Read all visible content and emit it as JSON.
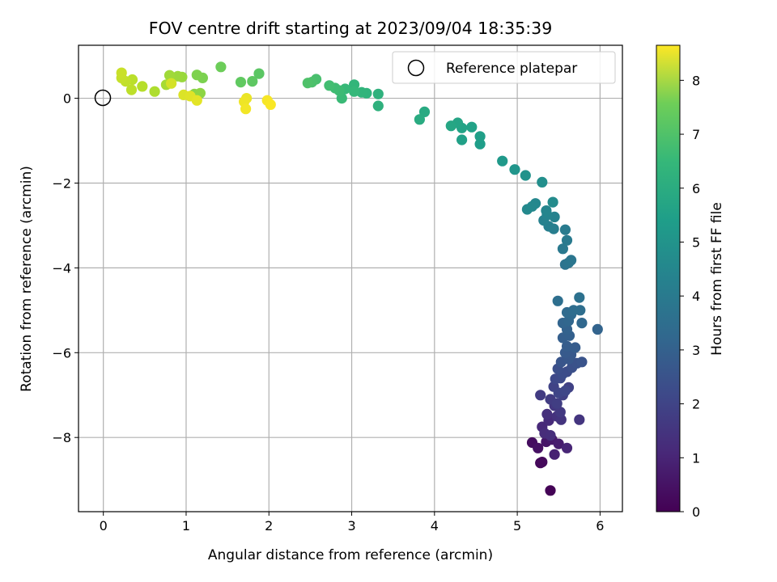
{
  "chart_data": {
    "type": "scatter",
    "title": "FOV centre drift starting at 2023/09/04 18:35:39",
    "xlabel": "Angular distance from reference (arcmin)",
    "ylabel": "Rotation from reference (arcmin)",
    "xlim": [
      -0.3,
      6.27
    ],
    "ylim": [
      -9.75,
      1.25
    ],
    "xticks": [
      0,
      1,
      2,
      3,
      4,
      5,
      6
    ],
    "yticks": [
      0,
      -2,
      -4,
      -6,
      -8
    ],
    "grid": true,
    "legend": {
      "placement": "top-right",
      "entries": [
        "Reference platepar"
      ]
    },
    "colorbar": {
      "label": "Hours from first FF file",
      "min": 0,
      "max": 8.65,
      "ticks": [
        0,
        1,
        2,
        3,
        4,
        5,
        6,
        7,
        8
      ],
      "colormap": "viridis"
    },
    "reference_point": {
      "x": 0,
      "y": 0
    },
    "series": [
      {
        "columns": [
          "x",
          "y",
          "hours"
        ],
        "points": [
          [
            5.4,
            -9.25,
            0.05
          ],
          [
            5.28,
            -8.6,
            0.15
          ],
          [
            5.3,
            -8.58,
            0.2
          ],
          [
            5.18,
            -8.12,
            0.3
          ],
          [
            5.25,
            -8.25,
            0.4
          ],
          [
            5.35,
            -8.1,
            0.5
          ],
          [
            5.42,
            -8.05,
            0.6
          ],
          [
            5.5,
            -8.15,
            0.7
          ],
          [
            5.45,
            -8.4,
            0.8
          ],
          [
            5.6,
            -8.25,
            0.9
          ],
          [
            5.3,
            -7.75,
            1.0
          ],
          [
            5.38,
            -7.6,
            1.05
          ],
          [
            5.33,
            -7.9,
            1.1
          ],
          [
            5.4,
            -7.95,
            1.15
          ],
          [
            5.36,
            -7.45,
            1.2
          ],
          [
            5.48,
            -7.5,
            1.25
          ],
          [
            5.53,
            -7.58,
            1.3
          ],
          [
            5.75,
            -7.58,
            1.35
          ],
          [
            5.45,
            -7.25,
            1.4
          ],
          [
            5.52,
            -7.4,
            1.45
          ],
          [
            5.28,
            -7.0,
            1.5
          ],
          [
            5.4,
            -7.1,
            1.55
          ],
          [
            5.48,
            -7.2,
            1.6
          ],
          [
            5.55,
            -7.0,
            1.65
          ],
          [
            5.62,
            -6.82,
            1.7
          ],
          [
            5.44,
            -6.8,
            1.75
          ],
          [
            5.5,
            -6.95,
            1.8
          ],
          [
            5.58,
            -6.9,
            1.85
          ],
          [
            5.46,
            -6.62,
            1.9
          ],
          [
            5.52,
            -6.6,
            1.95
          ],
          [
            5.6,
            -6.45,
            2.0
          ],
          [
            5.55,
            -6.5,
            2.05
          ],
          [
            5.49,
            -6.38,
            2.1
          ],
          [
            5.66,
            -6.35,
            2.15
          ],
          [
            5.72,
            -6.25,
            2.2
          ],
          [
            5.78,
            -6.22,
            2.25
          ],
          [
            5.53,
            -6.22,
            2.3
          ],
          [
            5.62,
            -6.15,
            2.35
          ],
          [
            5.65,
            -6.05,
            2.4
          ],
          [
            5.58,
            -6.0,
            2.45
          ],
          [
            5.7,
            -5.88,
            2.5
          ],
          [
            5.6,
            -5.85,
            2.55
          ],
          [
            5.55,
            -5.65,
            2.6
          ],
          [
            5.63,
            -5.6,
            2.65
          ],
          [
            5.6,
            -5.45,
            2.7
          ],
          [
            5.97,
            -5.45,
            2.75
          ],
          [
            5.55,
            -5.3,
            2.8
          ],
          [
            5.62,
            -5.25,
            2.85
          ],
          [
            5.78,
            -5.3,
            2.9
          ],
          [
            5.65,
            -5.1,
            2.95
          ],
          [
            5.6,
            -5.05,
            3.0
          ],
          [
            5.68,
            -5.0,
            3.05
          ],
          [
            5.76,
            -5.0,
            3.1
          ],
          [
            5.49,
            -4.78,
            3.15
          ],
          [
            5.75,
            -4.7,
            3.2
          ],
          [
            5.58,
            -3.92,
            3.3
          ],
          [
            5.62,
            -3.88,
            3.35
          ],
          [
            5.65,
            -3.82,
            3.4
          ],
          [
            5.55,
            -3.55,
            3.5
          ],
          [
            5.6,
            -3.35,
            3.55
          ],
          [
            5.58,
            -3.1,
            3.6
          ],
          [
            5.44,
            -3.08,
            3.7
          ],
          [
            5.38,
            -3.02,
            3.75
          ],
          [
            5.32,
            -2.88,
            3.8
          ],
          [
            5.45,
            -2.8,
            3.85
          ],
          [
            5.36,
            -2.75,
            3.9
          ],
          [
            5.35,
            -2.65,
            3.95
          ],
          [
            5.22,
            -2.48,
            4.0
          ],
          [
            5.18,
            -2.55,
            4.05
          ],
          [
            5.12,
            -2.62,
            4.1
          ],
          [
            5.43,
            -2.45,
            4.15
          ],
          [
            5.3,
            -1.98,
            4.3
          ],
          [
            5.1,
            -1.82,
            4.4
          ],
          [
            4.97,
            -1.68,
            4.5
          ],
          [
            4.82,
            -1.48,
            4.65
          ],
          [
            4.55,
            -1.08,
            4.8
          ],
          [
            4.55,
            -0.9,
            4.85
          ],
          [
            4.33,
            -0.98,
            4.9
          ],
          [
            4.45,
            -0.68,
            4.95
          ],
          [
            4.33,
            -0.7,
            5.0
          ],
          [
            4.28,
            -0.58,
            5.05
          ],
          [
            4.2,
            -0.65,
            5.1
          ],
          [
            3.88,
            -0.32,
            5.25
          ],
          [
            3.82,
            -0.5,
            5.3
          ],
          [
            3.32,
            -0.18,
            5.5
          ],
          [
            3.32,
            0.1,
            5.55
          ],
          [
            3.18,
            0.12,
            5.6
          ],
          [
            3.12,
            0.14,
            5.65
          ],
          [
            3.03,
            0.32,
            5.7
          ],
          [
            3.03,
            0.16,
            5.75
          ],
          [
            2.92,
            0.22,
            5.8
          ],
          [
            2.88,
            0.0,
            5.85
          ],
          [
            2.85,
            0.18,
            5.9
          ],
          [
            2.8,
            0.24,
            5.95
          ],
          [
            2.73,
            0.3,
            6.0
          ],
          [
            2.57,
            0.45,
            6.1
          ],
          [
            2.52,
            0.38,
            6.15
          ],
          [
            2.47,
            0.36,
            6.2
          ],
          [
            1.88,
            0.58,
            6.4
          ],
          [
            1.8,
            0.4,
            6.45
          ],
          [
            1.66,
            0.38,
            6.5
          ],
          [
            1.42,
            0.74,
            6.7
          ],
          [
            1.2,
            0.48,
            6.9
          ],
          [
            1.13,
            0.55,
            6.95
          ],
          [
            1.1,
            0.1,
            7.1
          ],
          [
            1.17,
            0.12,
            7.15
          ],
          [
            0.95,
            0.5,
            7.3
          ],
          [
            0.9,
            0.52,
            7.35
          ],
          [
            0.8,
            0.54,
            7.4
          ],
          [
            0.76,
            0.32,
            7.5
          ],
          [
            0.62,
            0.16,
            7.6
          ],
          [
            0.47,
            0.28,
            7.7
          ],
          [
            0.35,
            0.44,
            7.75
          ],
          [
            0.34,
            0.2,
            7.8
          ],
          [
            0.27,
            0.4,
            7.85
          ],
          [
            0.22,
            0.48,
            7.9
          ],
          [
            0.22,
            0.6,
            7.95
          ],
          [
            0.82,
            0.35,
            8.1
          ],
          [
            0.97,
            0.08,
            8.2
          ],
          [
            1.05,
            0.05,
            8.25
          ],
          [
            1.13,
            -0.05,
            8.3
          ],
          [
            1.73,
            0.0,
            8.4
          ],
          [
            1.7,
            -0.08,
            8.45
          ],
          [
            1.72,
            -0.25,
            8.5
          ],
          [
            1.98,
            -0.05,
            8.55
          ],
          [
            2.02,
            -0.15,
            8.6
          ]
        ]
      }
    ]
  }
}
